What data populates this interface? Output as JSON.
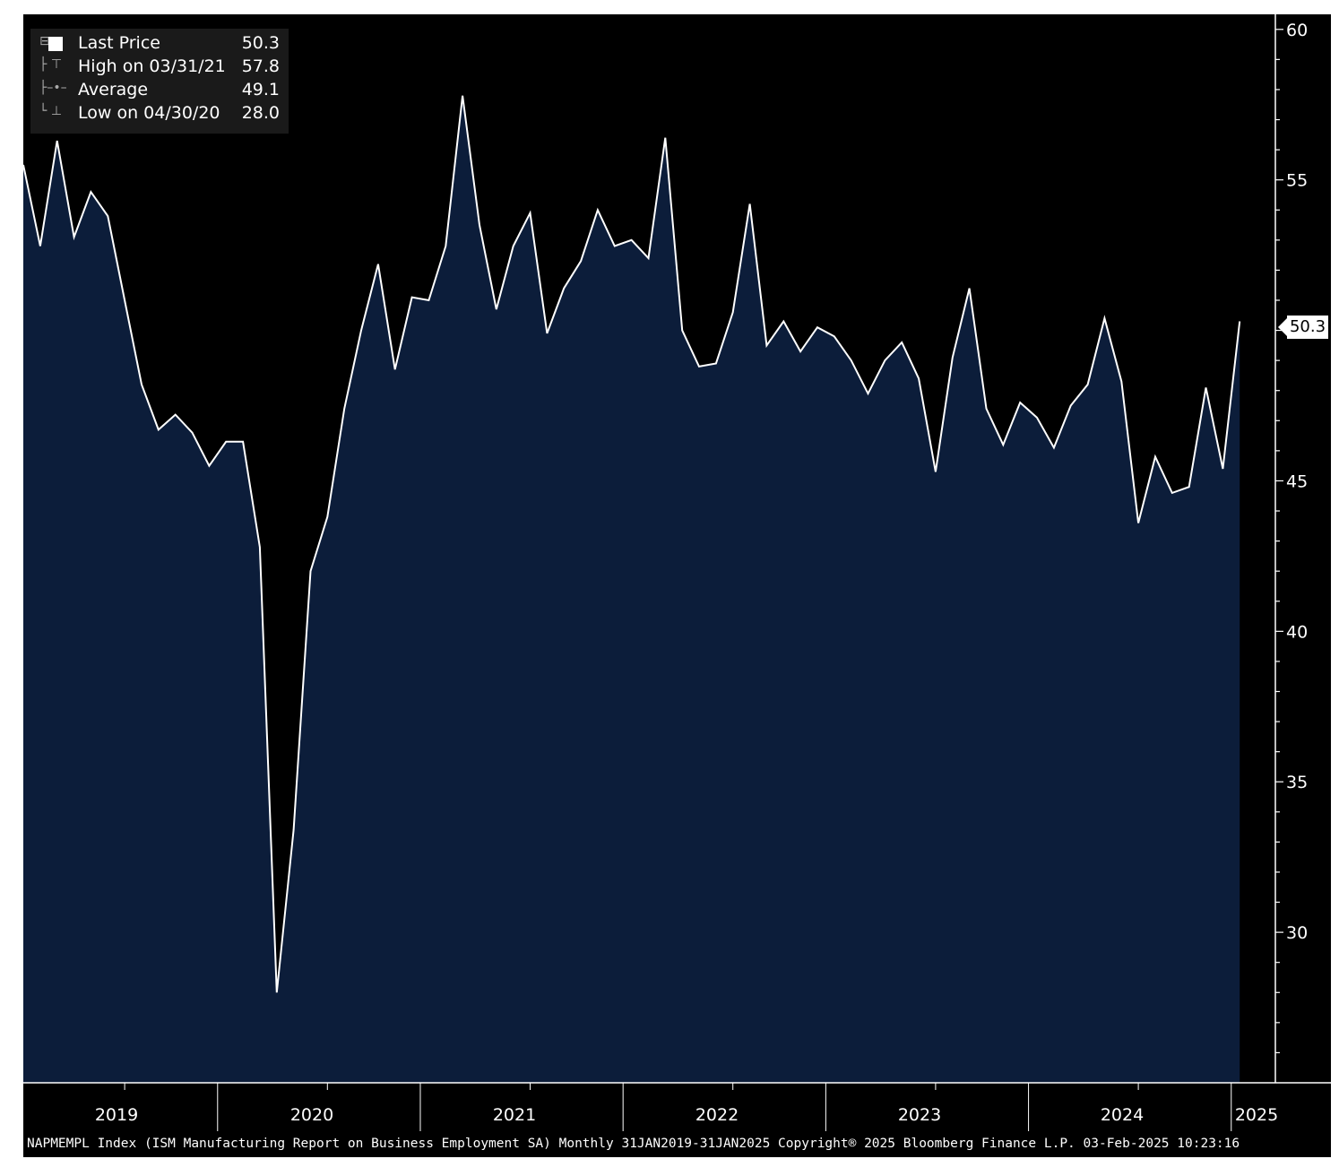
{
  "legend": {
    "rows": [
      {
        "label": "Last Price",
        "value": "50.3",
        "icon": "white-square-swatch"
      },
      {
        "label": "High on 03/31/21",
        "value": "57.8",
        "icon": "high-marker-icon"
      },
      {
        "label": "Average",
        "value": "49.1",
        "icon": "average-marker-icon"
      },
      {
        "label": "Low on 04/30/20",
        "value": "28.0",
        "icon": "low-marker-icon"
      }
    ]
  },
  "last_value_tag": "50.3",
  "footer": "NAPMEMPL Index (ISM Manufacturing Report on Business Employment SA)  Monthly 31JAN2019-31JAN2025 Copyright® 2025 Bloomberg Finance L.P. 03-Feb-2025 10:23:16",
  "colors": {
    "background": "#000000",
    "area_fill": "#0c1d3a",
    "line": "#ffffff"
  },
  "chart_data": {
    "type": "area",
    "title": "",
    "xlabel": "",
    "ylabel": "",
    "ylim": [
      25,
      60.5
    ],
    "y_ticks": [
      "30",
      "35",
      "40",
      "45",
      "50",
      "55",
      "60"
    ],
    "x_year_labels": [
      "2019",
      "2020",
      "2021",
      "2022",
      "2023",
      "2024",
      "2025"
    ],
    "grid": false,
    "legend_position": "top-left",
    "series": [
      {
        "name": "Last Price",
        "x_start": "2019-01",
        "frequency": "monthly",
        "values": [
          55.5,
          52.8,
          56.3,
          53.1,
          54.6,
          53.8,
          51.0,
          48.2,
          46.7,
          47.2,
          46.6,
          45.5,
          46.3,
          46.3,
          42.8,
          28.0,
          33.4,
          42.0,
          43.8,
          47.4,
          50.0,
          52.2,
          48.7,
          51.1,
          51.0,
          52.8,
          57.8,
          53.5,
          50.7,
          52.8,
          53.9,
          49.9,
          51.4,
          52.3,
          54.0,
          52.8,
          53.0,
          52.4,
          56.4,
          50.0,
          48.8,
          48.9,
          50.6,
          54.2,
          49.5,
          50.3,
          49.3,
          50.1,
          49.8,
          49.0,
          47.9,
          49.0,
          49.6,
          48.4,
          45.3,
          49.1,
          51.4,
          47.4,
          46.2,
          47.6,
          47.1,
          46.1,
          47.5,
          48.2,
          50.4,
          48.3,
          43.6,
          45.8,
          44.6,
          44.8,
          48.1,
          45.4,
          50.3
        ]
      }
    ]
  }
}
